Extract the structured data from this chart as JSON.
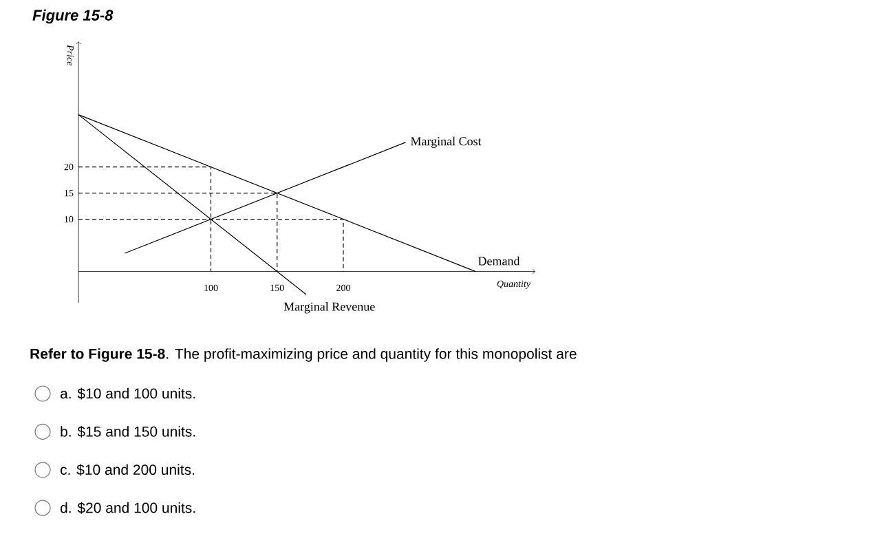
{
  "chart_data": {
    "type": "line",
    "title": "Figure 15-8",
    "xlabel": "Quantity",
    "ylabel": "Price",
    "annotations": [
      "**Refer to Figure 15-8**. The profit-maximizing price and quantity for this monopolist are",
      "a. $10 and 100 units.",
      "b. $15 and 150 units.",
      "c. $10 and 200 units.",
      "d. $20 and 100 units."
    ],
    "xlim": [
      0,
      345
    ],
    "ylim": [
      -6,
      44
    ],
    "xticks": [
      100,
      150,
      200
    ],
    "yticks": [
      10,
      15,
      20
    ],
    "series": [
      {
        "name": "Demand",
        "color": "#000000",
        "x": [
          0,
          300
        ],
        "values": [
          30,
          0
        ]
      },
      {
        "name": "Marginal Cost",
        "color": "#000000",
        "x": [
          35,
          247
        ],
        "values": [
          3.5,
          24.7
        ]
      },
      {
        "name": "Marginal Revenue",
        "color": "#000000",
        "x": [
          0,
          172
        ],
        "values": [
          30,
          -4.4
        ]
      },
      {
        "color": "#000000",
        "line_style": "dashed",
        "x": [
          0,
          100,
          100
        ],
        "values": [
          20,
          20,
          0
        ]
      },
      {
        "color": "#000000",
        "line_style": "dashed",
        "x": [
          0,
          150,
          150
        ],
        "values": [
          15,
          15,
          0
        ]
      },
      {
        "color": "#000000",
        "line_style": "dashed",
        "x": [
          0,
          200,
          200
        ],
        "values": [
          10,
          10,
          0
        ]
      }
    ]
  }
}
